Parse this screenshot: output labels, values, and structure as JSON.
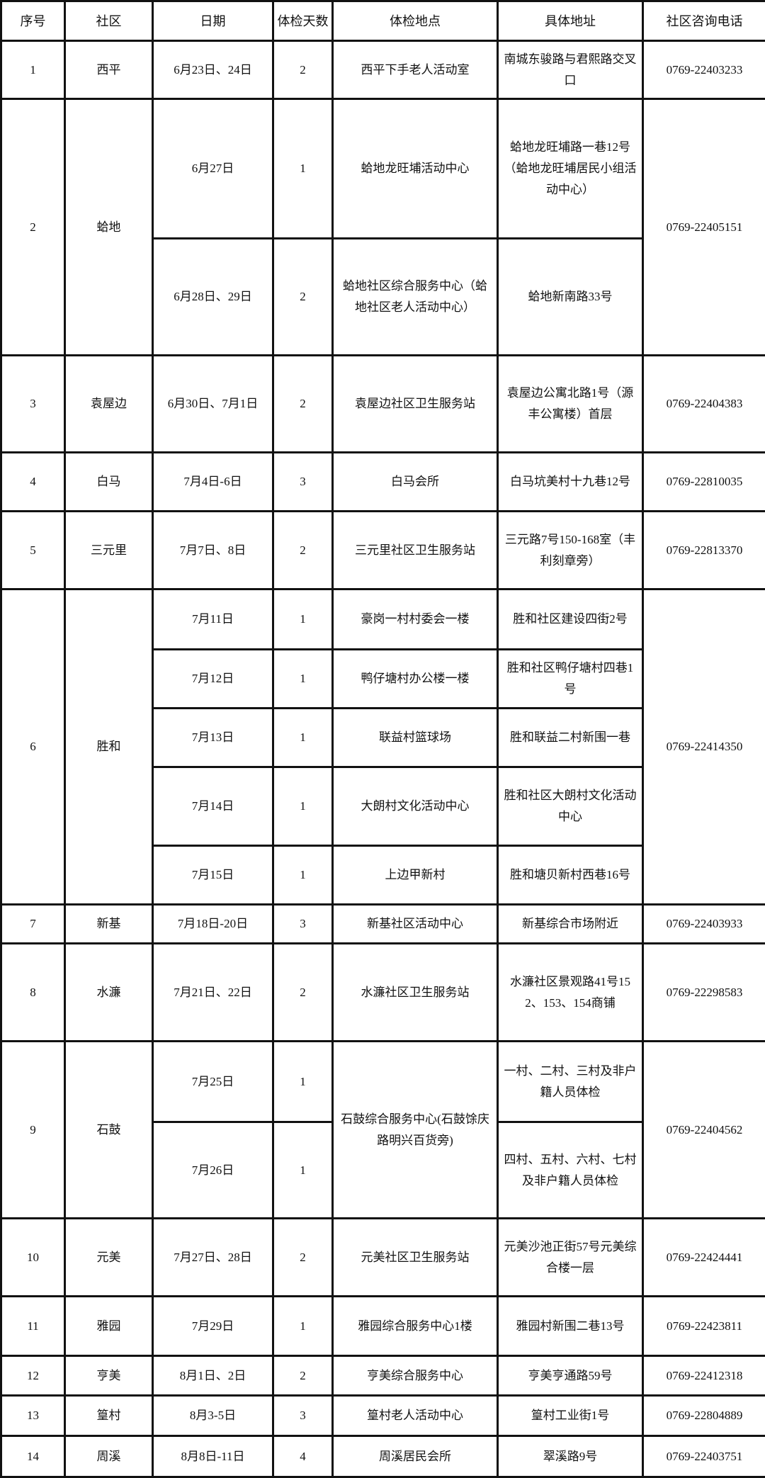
{
  "headers": [
    "序号",
    "社区",
    "日期",
    "体检天数",
    "体检地点",
    "具体地址",
    "社区咨询电话"
  ],
  "rows": [
    {
      "no": "1",
      "community": "西平",
      "phone": "0769-22403233",
      "sessions": [
        {
          "date": "6月23日、24日",
          "days": "2",
          "venue": "西平下手老人活动室",
          "address": "南城东骏路与君熙路交叉口"
        }
      ]
    },
    {
      "no": "2",
      "community": "蛤地",
      "phone": "0769-22405151",
      "sessions": [
        {
          "date": "6月27日",
          "days": "1",
          "venue": "蛤地龙旺埔活动中心",
          "address": "蛤地龙旺埔路一巷12号（蛤地龙旺埔居民小组活动中心）"
        },
        {
          "date": "6月28日、29日",
          "days": "2",
          "venue": "蛤地社区综合服务中心（蛤地社区老人活动中心）",
          "address": "蛤地新南路33号"
        }
      ]
    },
    {
      "no": "3",
      "community": "袁屋边",
      "phone": "0769-22404383",
      "sessions": [
        {
          "date": "6月30日、7月1日",
          "days": "2",
          "venue": "袁屋边社区卫生服务站",
          "address": "袁屋边公寓北路1号（源丰公寓楼）首层"
        }
      ]
    },
    {
      "no": "4",
      "community": "白马",
      "phone": "0769-22810035",
      "sessions": [
        {
          "date": "7月4日-6日",
          "days": "3",
          "venue": "白马会所",
          "address": "白马坑美村十九巷12号"
        }
      ]
    },
    {
      "no": "5",
      "community": "三元里",
      "phone": "0769-22813370",
      "sessions": [
        {
          "date": "7月7日、8日",
          "days": "2",
          "venue": "三元里社区卫生服务站",
          "address": "三元路7号150-168室（丰利刻章旁）"
        }
      ]
    },
    {
      "no": "6",
      "community": "胜和",
      "phone": "0769-22414350",
      "sessions": [
        {
          "date": "7月11日",
          "days": "1",
          "venue": "豪岗一村村委会一楼",
          "address": "胜和社区建设四街2号"
        },
        {
          "date": "7月12日",
          "days": "1",
          "venue": "鸭仔塘村办公楼一楼",
          "address": "胜和社区鸭仔塘村四巷1号"
        },
        {
          "date": "7月13日",
          "days": "1",
          "venue": "联益村篮球场",
          "address": "胜和联益二村新围一巷"
        },
        {
          "date": "7月14日",
          "days": "1",
          "venue": "大朗村文化活动中心",
          "address": "胜和社区大朗村文化活动中心"
        },
        {
          "date": "7月15日",
          "days": "1",
          "venue": "上边甲新村",
          "address": "胜和塘贝新村西巷16号"
        }
      ]
    },
    {
      "no": "7",
      "community": "新基",
      "phone": "0769-22403933",
      "sessions": [
        {
          "date": "7月18日-20日",
          "days": "3",
          "venue": "新基社区活动中心",
          "address": "新基综合市场附近"
        }
      ]
    },
    {
      "no": "8",
      "community": "水濂",
      "phone": "0769-22298583",
      "sessions": [
        {
          "date": "7月21日、22日",
          "days": "2",
          "venue": "水濂社区卫生服务站",
          "address": "水濂社区景观路41号152、153、154商铺"
        }
      ]
    },
    {
      "no": "9",
      "community": "石鼓",
      "phone": "0769-22404562",
      "venue": "石鼓综合服务中心(石鼓馀庆路明兴百货旁)",
      "sessions": [
        {
          "date": "7月25日",
          "days": "1",
          "address": "一村、二村、三村及非户籍人员体检"
        },
        {
          "date": "7月26日",
          "days": "1",
          "address": "四村、五村、六村、七村及非户籍人员体检"
        }
      ]
    },
    {
      "no": "10",
      "community": "元美",
      "phone": "0769-22424441",
      "sessions": [
        {
          "date": "7月27日、28日",
          "days": "2",
          "venue": "元美社区卫生服务站",
          "address": "元美沙池正街57号元美综合楼一层"
        }
      ]
    },
    {
      "no": "11",
      "community": "雅园",
      "phone": "0769-22423811",
      "sessions": [
        {
          "date": "7月29日",
          "days": "1",
          "venue": "雅园综合服务中心1楼",
          "address": "雅园村新围二巷13号"
        }
      ]
    },
    {
      "no": "12",
      "community": "亨美",
      "phone": "0769-22412318",
      "sessions": [
        {
          "date": "8月1日、2日",
          "days": "2",
          "venue": "亨美综合服务中心",
          "address": "亨美亨通路59号"
        }
      ]
    },
    {
      "no": "13",
      "community": "篁村",
      "phone": "0769-22804889",
      "sessions": [
        {
          "date": "8月3-5日",
          "days": "3",
          "venue": "篁村老人活动中心",
          "address": "篁村工业街1号"
        }
      ]
    },
    {
      "no": "14",
      "community": "周溪",
      "phone": "0769-22403751",
      "sessions": [
        {
          "date": "8月8日-11日",
          "days": "4",
          "venue": "周溪居民会所",
          "address": "翠溪路9号"
        }
      ]
    }
  ]
}
